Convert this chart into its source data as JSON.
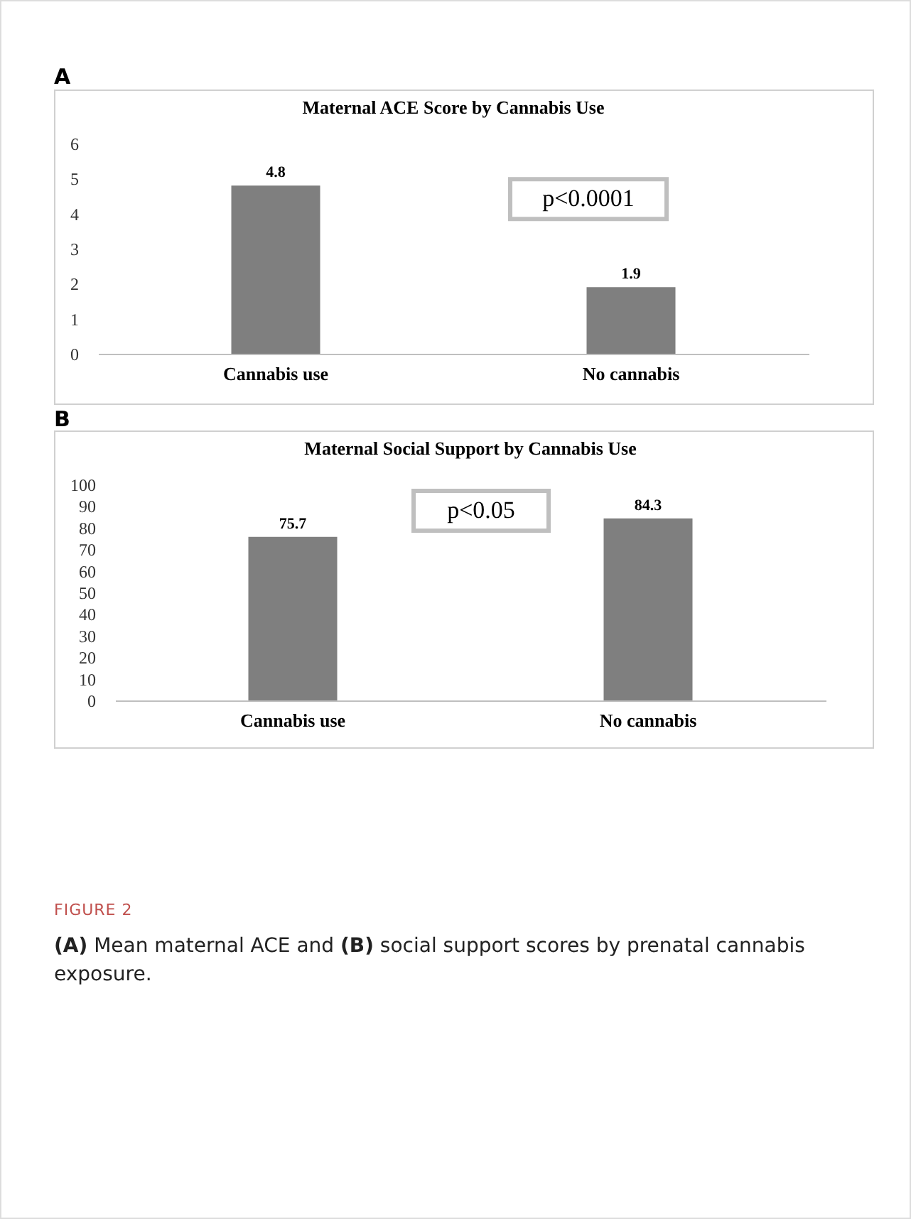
{
  "chart_data": [
    {
      "type": "bar",
      "title": "Maternal ACE Score by Cannabis Use",
      "categories": [
        "Cannabis use",
        "No cannabis"
      ],
      "values": [
        4.8,
        1.9
      ],
      "color": "#7f7f7f",
      "ylim": [
        0,
        6
      ],
      "yticks": [
        0,
        1,
        2,
        3,
        4,
        5,
        6
      ],
      "data_labels": true,
      "annotations": [
        "A",
        "p<0.0001"
      ]
    },
    {
      "type": "bar",
      "title": "Maternal Social Support by Cannabis Use",
      "categories": [
        "Cannabis use",
        "No cannabis"
      ],
      "values": [
        75.7,
        84.3
      ],
      "color": "#7f7f7f",
      "ylim": [
        0,
        100
      ],
      "yticks": [
        0,
        10,
        20,
        30,
        40,
        50,
        60,
        70,
        80,
        90,
        100
      ],
      "data_labels": true,
      "annotations": [
        "B",
        "p<0.05",
        "FIGURE 2",
        "(A) Mean maternal ACE and (B) social support scores by prenatal cannabis exposure."
      ]
    }
  ]
}
